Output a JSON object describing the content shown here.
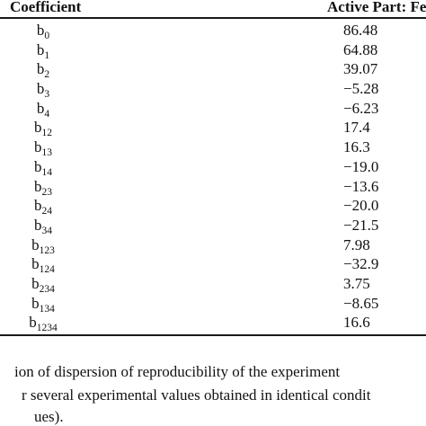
{
  "table": {
    "headers": {
      "coefficient": "Coefficient",
      "active_part": "Active Part: Fe"
    },
    "rows": [
      {
        "base": "b",
        "sub": "0",
        "value": "86.48"
      },
      {
        "base": "b",
        "sub": "1",
        "value": "64.88"
      },
      {
        "base": "b",
        "sub": "2",
        "value": "39.07"
      },
      {
        "base": "b",
        "sub": "3",
        "value": "−5.28"
      },
      {
        "base": "b",
        "sub": "4",
        "value": "−6.23"
      },
      {
        "base": "b",
        "sub": "12",
        "value": "17.4"
      },
      {
        "base": "b",
        "sub": "13",
        "value": "16.3"
      },
      {
        "base": "b",
        "sub": "14",
        "value": "−19.0"
      },
      {
        "base": "b",
        "sub": "23",
        "value": "−13.6"
      },
      {
        "base": "b",
        "sub": "24",
        "value": "−20.0"
      },
      {
        "base": "b",
        "sub": "34",
        "value": "−21.5"
      },
      {
        "base": "b",
        "sub": "123",
        "value": "7.98"
      },
      {
        "base": "b",
        "sub": "124",
        "value": "−32.9"
      },
      {
        "base": "b",
        "sub": "234",
        "value": "3.75"
      },
      {
        "base": "b",
        "sub": "134",
        "value": "−8.65"
      },
      {
        "base": "b",
        "sub": "1234",
        "value": "16.6"
      }
    ]
  },
  "footnote": {
    "line1": "ion of dispersion of reproducibility of the experiment",
    "line2": "r several experimental values obtained in identical condit",
    "line3": "ues)."
  }
}
